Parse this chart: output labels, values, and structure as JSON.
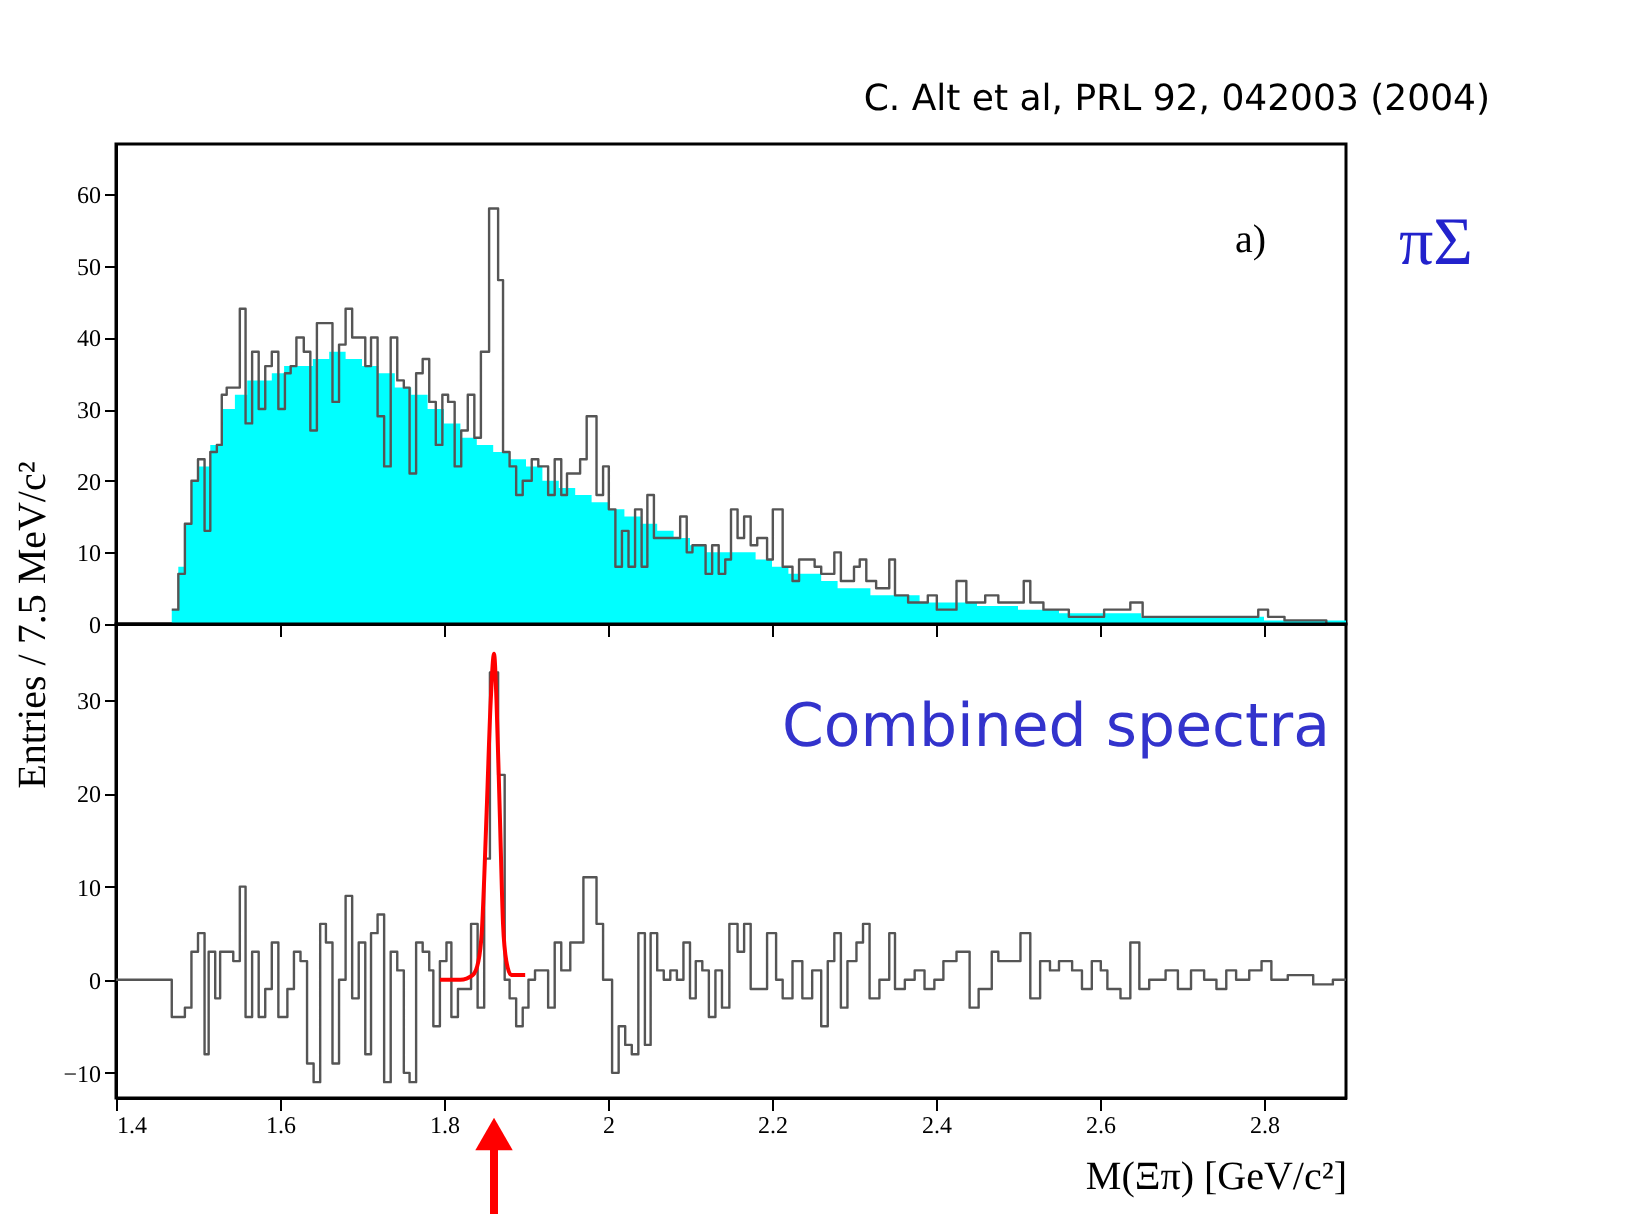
{
  "chart_data": [
    {
      "type": "step",
      "ylabel": "Entries / 7.5 MeV/c²",
      "xlim": [
        1.4,
        2.9
      ],
      "ylim": [
        0,
        67
      ],
      "yticks": [
        0,
        10,
        20,
        30,
        40,
        50,
        60
      ],
      "xticks": [
        1.4,
        1.6,
        1.8,
        2,
        2.2,
        2.4,
        2.6,
        2.8
      ],
      "tick_labels": "y",
      "grid": false,
      "annotations": [
        "C. Alt et al,  PRL 92, 042003 (2004)",
        "a)",
        "πΣ"
      ],
      "series": [
        {
          "type": "area",
          "color": "#00ffff",
          "x": [
            1.468,
            1.476,
            1.484,
            1.492,
            1.5,
            1.515,
            1.53,
            1.545,
            1.56,
            1.575,
            1.59,
            1.605,
            1.62,
            1.64,
            1.66,
            1.68,
            1.7,
            1.72,
            1.74,
            1.76,
            1.78,
            1.8,
            1.82,
            1.84,
            1.86,
            1.88,
            1.9,
            1.92,
            1.94,
            1.96,
            1.98,
            2.0,
            2.02,
            2.04,
            2.06,
            2.08,
            2.1,
            2.12,
            2.14,
            2.16,
            2.18,
            2.2,
            2.22,
            2.24,
            2.26,
            2.28,
            2.3,
            2.32,
            2.34,
            2.36,
            2.38,
            2.4,
            2.45,
            2.5,
            2.55,
            2.6,
            2.65,
            2.7,
            2.8,
            2.9
          ],
          "values": [
            2,
            8,
            14,
            20,
            22,
            25,
            30,
            32,
            34,
            34,
            35,
            36,
            36,
            37,
            38,
            37,
            36,
            35,
            33,
            32,
            30,
            28,
            26,
            25,
            24,
            23,
            22,
            20,
            19,
            18,
            17,
            16,
            15,
            14,
            13,
            12,
            11,
            10,
            10,
            10,
            9,
            8,
            7,
            7,
            6,
            5,
            5,
            4,
            4,
            4,
            3,
            3,
            2.5,
            2,
            1.5,
            1.5,
            1,
            1,
            0.5,
            0.5
          ]
        },
        {
          "color": "#555555",
          "x": [
            1.468,
            1.476,
            1.484,
            1.492,
            1.5,
            1.508,
            1.515,
            1.523,
            1.529,
            1.535,
            1.551,
            1.558,
            1.566,
            1.574,
            1.582,
            1.59,
            1.598,
            1.606,
            1.613,
            1.62,
            1.629,
            1.637,
            1.645,
            1.664,
            1.672,
            1.68,
            1.688,
            1.704,
            1.711,
            1.719,
            1.727,
            1.735,
            1.743,
            1.751,
            1.758,
            1.766,
            1.774,
            1.782,
            1.79,
            1.798,
            1.805,
            1.813,
            1.821,
            1.829,
            1.837,
            1.845,
            1.855,
            1.866,
            1.872,
            1.88,
            1.888,
            1.896,
            1.907,
            1.915,
            1.927,
            1.935,
            1.943,
            1.95,
            1.966,
            1.974,
            1.986,
            1.994,
            2.001,
            2.009,
            2.017,
            2.025,
            2.033,
            2.041,
            2.048,
            2.056,
            2.088,
            2.096,
            2.103,
            2.119,
            2.127,
            2.135,
            2.143,
            2.15,
            2.158,
            2.166,
            2.174,
            2.182,
            2.194,
            2.201,
            2.213,
            2.225,
            2.233,
            2.252,
            2.26,
            2.276,
            2.284,
            2.3,
            2.307,
            2.315,
            2.327,
            2.343,
            2.35,
            2.366,
            2.39,
            2.401,
            2.425,
            2.437,
            2.46,
            2.476,
            2.507,
            2.515,
            2.531,
            2.562,
            2.586,
            2.605,
            2.637,
            2.652,
            2.688,
            2.719,
            2.75,
            2.793,
            2.805,
            2.825,
            2.876,
            2.9
          ],
          "values": [
            2,
            7,
            14,
            20,
            23,
            13,
            24,
            25,
            32,
            33,
            44,
            28,
            38,
            30,
            36,
            38,
            30,
            35,
            36,
            40,
            38,
            27,
            42,
            31,
            39,
            44,
            40,
            36,
            40,
            29,
            22,
            40,
            34,
            33,
            21,
            35,
            37,
            31,
            25,
            32,
            31,
            22,
            27,
            32,
            26,
            38,
            58,
            48,
            24,
            22,
            18,
            20,
            23,
            22,
            18,
            23,
            18,
            21,
            23,
            29,
            18,
            22,
            16,
            8,
            13,
            8,
            16,
            8,
            18,
            12,
            15,
            10,
            11,
            7,
            11,
            7,
            9,
            16,
            12,
            15,
            11,
            12,
            9,
            16,
            8,
            6,
            9,
            8,
            7,
            10,
            6,
            8,
            9,
            6,
            5,
            9,
            4,
            3,
            4,
            2,
            6,
            3,
            4,
            3,
            6,
            3,
            2,
            1,
            1,
            2,
            3,
            1,
            1,
            1,
            1,
            2,
            1,
            0.5,
            0,
            0
          ]
        }
      ]
    },
    {
      "type": "step",
      "xlabel": "M(Ξπ) [GeV/c²]",
      "xlim": [
        1.4,
        2.9
      ],
      "ylim": [
        -12.7,
        38.2
      ],
      "yticks": [
        -10,
        0,
        10,
        20,
        30
      ],
      "xticks": [
        1.4,
        1.6,
        1.8,
        2,
        2.2,
        2.4,
        2.6,
        2.8
      ],
      "grid": false,
      "annotations": [
        "Combined spectra"
      ],
      "series": [
        {
          "color": "#555555",
          "x": [
            1.4,
            1.468,
            1.484,
            1.492,
            1.5,
            1.508,
            1.513,
            1.521,
            1.527,
            1.543,
            1.551,
            1.558,
            1.566,
            1.574,
            1.582,
            1.59,
            1.598,
            1.609,
            1.617,
            1.625,
            1.633,
            1.641,
            1.649,
            1.656,
            1.664,
            1.672,
            1.68,
            1.688,
            1.696,
            1.704,
            1.711,
            1.719,
            1.727,
            1.735,
            1.743,
            1.751,
            1.758,
            1.766,
            1.774,
            1.782,
            1.787,
            1.795,
            1.803,
            1.809,
            1.817,
            1.833,
            1.841,
            1.849,
            1.856,
            1.866,
            1.874,
            1.88,
            1.888,
            1.896,
            1.903,
            1.911,
            1.927,
            1.935,
            1.943,
            1.954,
            1.97,
            1.986,
            1.994,
            2.005,
            2.013,
            2.021,
            2.029,
            2.037,
            2.045,
            2.052,
            2.06,
            2.068,
            2.076,
            2.084,
            2.092,
            2.1,
            2.107,
            2.115,
            2.123,
            2.131,
            2.139,
            2.148,
            2.158,
            2.166,
            2.174,
            2.194,
            2.205,
            2.213,
            2.225,
            2.237,
            2.249,
            2.26,
            2.268,
            2.276,
            2.284,
            2.292,
            2.303,
            2.311,
            2.319,
            2.331,
            2.343,
            2.35,
            2.362,
            2.374,
            2.386,
            2.398,
            2.409,
            2.425,
            2.441,
            2.452,
            2.468,
            2.476,
            2.503,
            2.515,
            2.527,
            2.539,
            2.55,
            2.566,
            2.578,
            2.59,
            2.601,
            2.609,
            2.625,
            2.637,
            2.648,
            2.66,
            2.68,
            2.695,
            2.711,
            2.727,
            2.742,
            2.754,
            2.766,
            2.782,
            2.797,
            2.809,
            2.829,
            2.86,
            2.884,
            2.9
          ],
          "values": [
            0,
            -4,
            -3,
            3,
            5,
            -8,
            3,
            -2,
            3,
            2,
            10,
            -4,
            3,
            -4,
            -1,
            4,
            -4,
            -1,
            3,
            2,
            -9,
            -11,
            6,
            4,
            -9,
            0,
            9,
            -2,
            4,
            -8,
            5,
            7,
            -11,
            3,
            1,
            -10,
            -11,
            4,
            3,
            1,
            -5,
            2,
            4,
            -4,
            -1,
            6,
            -3,
            13,
            33,
            22,
            0,
            -2,
            -5,
            -3,
            0,
            1,
            -3,
            4,
            1,
            4,
            11,
            6,
            0,
            -10,
            -5,
            -7,
            -8,
            5,
            -7,
            5,
            1,
            0,
            1,
            0,
            4,
            -2,
            2,
            1,
            -4,
            1,
            -3,
            6,
            3,
            6,
            -1,
            5,
            0,
            -2,
            2,
            -2,
            1,
            -5,
            2,
            5,
            -3,
            2,
            4,
            6,
            -2,
            0,
            5,
            -1,
            0,
            1,
            -1,
            0,
            2,
            3,
            -3,
            -1,
            3,
            2,
            5,
            -2,
            2,
            1,
            2,
            1,
            -1,
            2,
            1,
            -1,
            -2,
            4,
            -1,
            0,
            1,
            -1,
            1,
            0,
            -1,
            1,
            0,
            1,
            2,
            0,
            0.5,
            -0.5,
            0,
            0
          ]
        },
        {
          "type": "line",
          "color": "#ff0000",
          "x": [
            1.795,
            1.82,
            1.835,
            1.842,
            1.846,
            1.852,
            1.857,
            1.861,
            1.864,
            1.868,
            1.872,
            1.876,
            1.882,
            1.899
          ],
          "values": [
            0,
            0,
            0.5,
            2,
            5,
            18,
            30,
            35,
            30,
            18,
            6,
            2,
            0.5,
            0.5
          ]
        }
      ]
    }
  ]
}
